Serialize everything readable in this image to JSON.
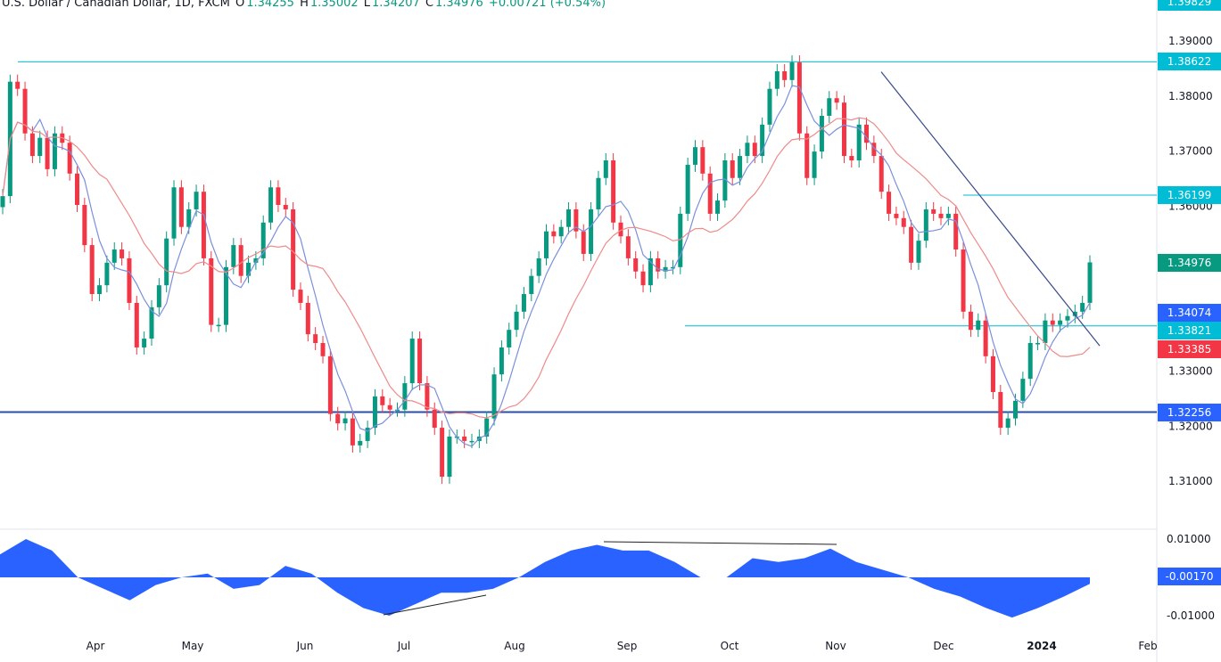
{
  "header": {
    "symbol": "U.S. Dollar / Canadian Dollar, 1D, FXCM",
    "o_label": "O",
    "o": "1.34255",
    "h_label": "H",
    "h": "1.35002",
    "l_label": "L",
    "l": "1.34207",
    "c_label": "C",
    "c": "1.34976",
    "change": "+0.00721 (+0.54%)"
  },
  "colors": {
    "up": "#089981",
    "down": "#f23645",
    "fast_ma": "#7b8fdc",
    "slow_ma": "#ef8a8a",
    "level": "#00bcd4",
    "support": "#2a4fa8",
    "oscillator": "#2962ff",
    "trendline": "#3a4a8a"
  },
  "price_axis": {
    "ticks": [
      "1.39000",
      "1.38000",
      "1.37000",
      "1.36000",
      "1.33000",
      "1.32000",
      "1.31000"
    ]
  },
  "osc_axis": {
    "ticks": [
      "0.01000",
      "-0.01000"
    ]
  },
  "price_labels": [
    {
      "text": "1.39829",
      "color": "#00bcd4"
    },
    {
      "text": "1.38622",
      "color": "#00bcd4"
    },
    {
      "text": "1.36199",
      "color": "#00bcd4"
    },
    {
      "text": "1.34976",
      "color": "#089981"
    },
    {
      "text": "1.34074",
      "color": "#2962ff"
    },
    {
      "text": "1.33821",
      "color": "#00bcd4"
    },
    {
      "text": "1.33385",
      "color": "#f23645"
    },
    {
      "text": "1.32256",
      "color": "#2962ff"
    },
    {
      "text": "-0.00170",
      "color": "#2962ff"
    }
  ],
  "time_axis": [
    "Apr",
    "May",
    "Jun",
    "Jul",
    "Aug",
    "Sep",
    "Oct",
    "Nov",
    "Dec",
    "2024",
    "Feb"
  ],
  "chart_data": [
    {
      "type": "candlestick",
      "title": "U.S. Dollar / Canadian Dollar, 1D, FXCM",
      "ylim": [
        1.3045,
        1.399
      ],
      "horizontal_levels": [
        1.38622,
        1.36199,
        1.33821,
        1.32256
      ],
      "trendline": [
        1.3844,
        1.3346
      ],
      "close": [
        1.3618,
        1.3826,
        1.3813,
        1.3732,
        1.3691,
        1.3724,
        1.3667,
        1.3732,
        1.3715,
        1.3659,
        1.3602,
        1.3529,
        1.344,
        1.3456,
        1.3497,
        1.3521,
        1.3505,
        1.3424,
        1.3343,
        1.3359,
        1.3416,
        1.3456,
        1.3541,
        1.3634,
        1.3562,
        1.3594,
        1.3626,
        1.3505,
        1.3384,
        1.3384,
        1.3489,
        1.3529,
        1.3473,
        1.3497,
        1.3505,
        1.357,
        1.3634,
        1.3602,
        1.3594,
        1.3448,
        1.3424,
        1.3367,
        1.3351,
        1.3327,
        1.3222,
        1.3205,
        1.3214,
        1.3165,
        1.3173,
        1.3197,
        1.3254,
        1.3238,
        1.323,
        1.323,
        1.3278,
        1.3359,
        1.3278,
        1.323,
        1.3197,
        1.3108,
        1.3181,
        1.3181,
        1.3173,
        1.3173,
        1.3181,
        1.3214,
        1.3294,
        1.3343,
        1.3375,
        1.3408,
        1.344,
        1.3473,
        1.3505,
        1.3554,
        1.3545,
        1.3562,
        1.3594,
        1.3554,
        1.3513,
        1.3594,
        1.3651,
        1.3683,
        1.357,
        1.3545,
        1.3505,
        1.3481,
        1.3456,
        1.3505,
        1.3481,
        1.3489,
        1.3489,
        1.3586,
        1.3675,
        1.3707,
        1.3659,
        1.3586,
        1.361,
        1.3683,
        1.3651,
        1.3691,
        1.3715,
        1.3691,
        1.3748,
        1.3813,
        1.3845,
        1.3829,
        1.3861,
        1.3732,
        1.3651,
        1.3699,
        1.3764,
        1.3796,
        1.3788,
        1.3691,
        1.3683,
        1.3748,
        1.3715,
        1.3691,
        1.3626,
        1.3586,
        1.3578,
        1.3562,
        1.3497,
        1.3537,
        1.3594,
        1.3586,
        1.3578,
        1.3586,
        1.3521,
        1.3408,
        1.3375,
        1.3392,
        1.3327,
        1.3262,
        1.3197,
        1.3214,
        1.3246,
        1.3286,
        1.3351,
        1.3351,
        1.3392,
        1.3384,
        1.3392,
        1.34,
        1.3408,
        1.3424,
        1.34976
      ]
    },
    {
      "type": "area",
      "ylim": [
        -0.0125,
        0.0105
      ],
      "values": [
        0.006,
        0.01,
        0.007,
        0.0,
        -0.003,
        -0.006,
        -0.002,
        0.0,
        0.001,
        -0.003,
        -0.002,
        0.003,
        0.001,
        -0.004,
        -0.008,
        -0.01,
        -0.007,
        -0.004,
        -0.004,
        -0.003,
        0.0,
        0.004,
        0.007,
        0.0085,
        0.007,
        0.007,
        0.004,
        0.0,
        0.0,
        0.005,
        0.004,
        0.005,
        0.0075,
        0.004,
        0.002,
        0.0,
        -0.003,
        -0.005,
        -0.008,
        -0.0105,
        -0.008,
        -0.005,
        -0.0017
      ]
    }
  ]
}
